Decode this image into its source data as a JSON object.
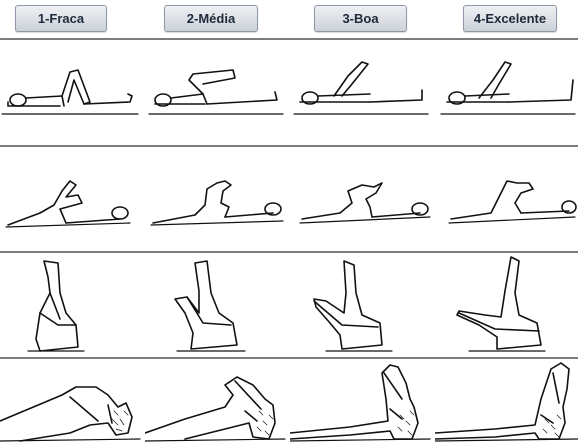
{
  "levels": {
    "l1": "1-Fraca",
    "l2": "2-Média",
    "l3": "3-Boa",
    "l4": "4-Excelente"
  },
  "rows": [
    {
      "name": "row-1",
      "figures": [
        "supine-knee-bent-1",
        "supine-knee-bent-2",
        "supine-knee-bent-3",
        "supine-knee-bent-4"
      ]
    },
    {
      "name": "row-2",
      "figures": [
        "prone-knee-raised-1",
        "prone-knee-raised-2",
        "prone-knee-raised-3",
        "prone-knee-raised-4"
      ]
    },
    {
      "name": "row-3",
      "figures": [
        "legs-up-sitting-1",
        "legs-up-sitting-2",
        "legs-up-sitting-3",
        "legs-up-sitting-4"
      ]
    },
    {
      "name": "row-4",
      "figures": [
        "leg-lift-closeup-1",
        "leg-lift-closeup-2",
        "leg-lift-closeup-3",
        "leg-lift-closeup-4"
      ]
    }
  ],
  "colors": {
    "button_text": "#1f2a3a",
    "divider": "#7d7d7d",
    "ink": "#111111"
  }
}
